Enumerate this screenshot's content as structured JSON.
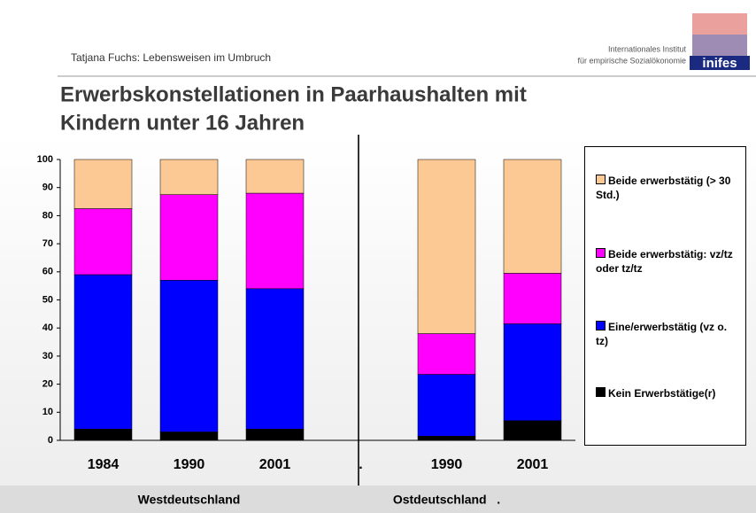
{
  "header": {
    "author": "Tatjana Fuchs: Lebensweisen im Umbruch",
    "institute": [
      "Internationales Institut",
      "für empirische Sozialökonomie"
    ],
    "logo": "inifes"
  },
  "chart_data": {
    "type": "bar",
    "stacked": true,
    "title": [
      "Erwerbskonstellationen in Paarhaushalten mit",
      "Kindern unter 16 Jahren"
    ],
    "categories": [
      "1984",
      "1990",
      "2001",
      ".",
      "1990",
      "2001"
    ],
    "groups": [
      "Westdeutschland",
      "Ostdeutschland   ."
    ],
    "series": [
      {
        "name": "Kein Erwerbstätige(r)",
        "color": "#000000",
        "values": [
          4,
          3,
          4,
          null,
          1.5,
          7
        ]
      },
      {
        "name": "Eine/erwerbstätig (vz o. tz)",
        "color": "#0000ff",
        "values": [
          55,
          54,
          50,
          null,
          22,
          34.5
        ]
      },
      {
        "name": "Beide erwerbstätig: vz/tz oder tz/tz",
        "color": "#ff00ff",
        "values": [
          23.5,
          30.5,
          34,
          null,
          14.5,
          18
        ]
      },
      {
        "name": "Beide erwerbstätig (> 30 Std.)",
        "color": "#fcc994",
        "values": [
          17.5,
          12.5,
          12,
          null,
          62,
          40.5
        ]
      }
    ],
    "ylim": [
      0,
      100
    ],
    "yticks": [
      0,
      10,
      20,
      30,
      40,
      50,
      60,
      70,
      80,
      90,
      100
    ],
    "grid": false
  }
}
